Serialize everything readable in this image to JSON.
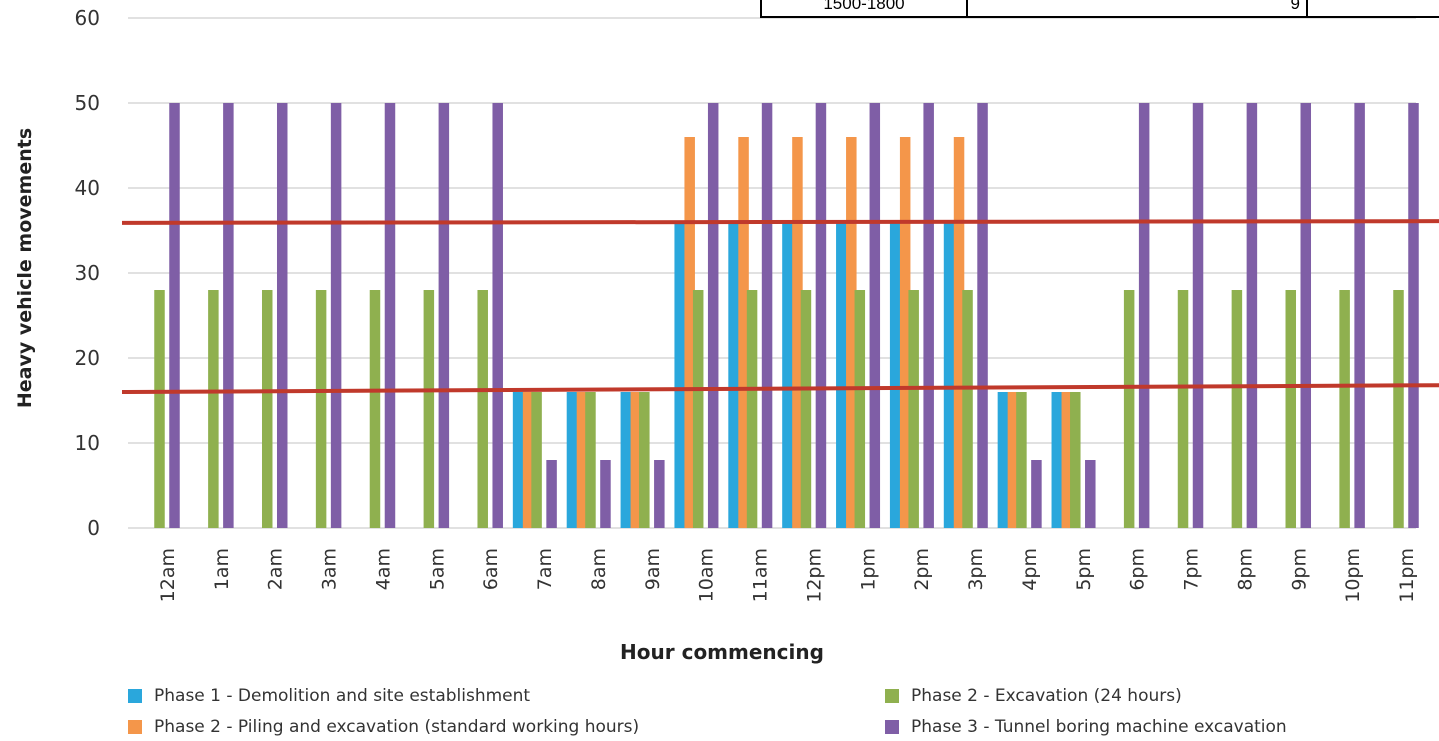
{
  "chart_data": {
    "type": "bar",
    "title": "",
    "xlabel": "Hour commencing",
    "ylabel": "Heavy vehicle movements",
    "ylim": [
      0,
      60
    ],
    "yticks": [
      0,
      10,
      20,
      30,
      40,
      50,
      60
    ],
    "grid": true,
    "legend_position": "bottom",
    "categories": [
      "12am",
      "1am",
      "2am",
      "3am",
      "4am",
      "5am",
      "6am",
      "7am",
      "8am",
      "9am",
      "10am",
      "11am",
      "12pm",
      "1pm",
      "2pm",
      "3pm",
      "4pm",
      "5pm",
      "6pm",
      "7pm",
      "8pm",
      "9pm",
      "10pm",
      "11pm"
    ],
    "series": [
      {
        "name": "Phase 1 - Demolition and site establishment",
        "color": "#2aa7dc",
        "values": [
          0,
          0,
          0,
          0,
          0,
          0,
          0,
          16,
          16,
          16,
          36,
          36,
          36,
          36,
          36,
          36,
          16,
          16,
          0,
          0,
          0,
          0,
          0,
          0
        ]
      },
      {
        "name": "Phase 2 - Piling and excavation (standard working hours)",
        "color": "#f4964a",
        "values": [
          0,
          0,
          0,
          0,
          0,
          0,
          0,
          16,
          16,
          16,
          46,
          46,
          46,
          46,
          46,
          46,
          16,
          16,
          0,
          0,
          0,
          0,
          0,
          0
        ]
      },
      {
        "name": "Phase 2 - Excavation (24 hours)",
        "color": "#8fb04f",
        "values": [
          28,
          28,
          28,
          28,
          28,
          28,
          28,
          16,
          16,
          16,
          28,
          28,
          28,
          28,
          28,
          28,
          16,
          16,
          28,
          28,
          28,
          28,
          28,
          28
        ]
      },
      {
        "name": "Phase 3 - Tunnel boring machine excavation",
        "color": "#7f5ea6",
        "values": [
          50,
          50,
          50,
          50,
          50,
          50,
          50,
          8,
          8,
          8,
          50,
          50,
          50,
          50,
          50,
          50,
          8,
          8,
          50,
          50,
          50,
          50,
          50,
          50
        ]
      }
    ],
    "reference_lines": [
      {
        "y_start": 35.9,
        "y_end": 36.1,
        "color": "#c0392b"
      },
      {
        "y_start": 16.0,
        "y_end": 16.8,
        "color": "#c0392b"
      }
    ]
  },
  "overlay_table": {
    "cells": [
      "1500-1800",
      "9",
      ""
    ]
  }
}
